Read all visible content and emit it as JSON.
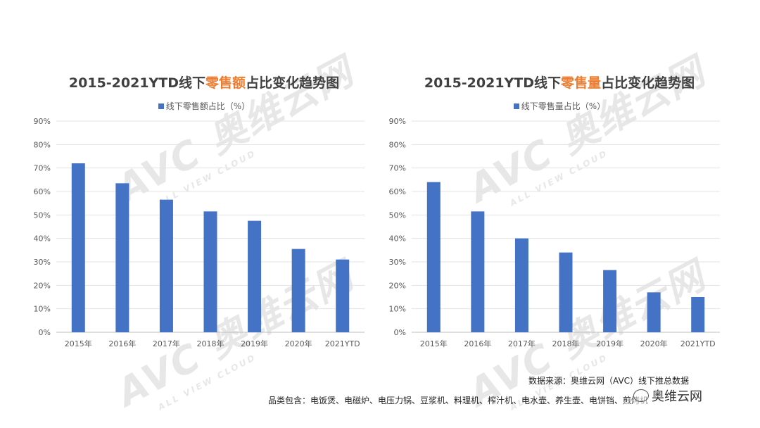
{
  "chart_data": [
    {
      "type": "bar",
      "title_parts": [
        "2015-2021YTD线下",
        "零售额",
        "占比变化趋势图"
      ],
      "legend": "线下零售额占比（%）",
      "categories": [
        "2015年",
        "2016年",
        "2017年",
        "2018年",
        "2019年",
        "2020年",
        "2021YTD"
      ],
      "series": [
        {
          "name": "线下零售额占比（%）",
          "values": [
            72,
            63.5,
            56.5,
            51.5,
            47.5,
            35.5,
            31
          ]
        }
      ],
      "y_ticks": [
        "0%",
        "10%",
        "20%",
        "30%",
        "40%",
        "50%",
        "60%",
        "70%",
        "80%",
        "90%"
      ],
      "ylim": [
        0,
        90
      ],
      "grid": true,
      "bar_color": "#4472C4",
      "highlight_color": "#ED7D31"
    },
    {
      "type": "bar",
      "title_parts": [
        "2015-2021YTD线下",
        "零售量",
        "占比变化趋势图"
      ],
      "legend": "线下零售量占比（%）",
      "categories": [
        "2015年",
        "2016年",
        "2017年",
        "2018年",
        "2019年",
        "2020年",
        "2021YTD"
      ],
      "series": [
        {
          "name": "线下零售量占比（%）",
          "values": [
            64,
            51.5,
            40,
            34,
            26.5,
            17,
            15
          ]
        }
      ],
      "y_ticks": [
        "0%",
        "10%",
        "20%",
        "30%",
        "40%",
        "50%",
        "60%",
        "70%",
        "80%",
        "90%"
      ],
      "ylim": [
        0,
        90
      ],
      "grid": true,
      "bar_color": "#4472C4",
      "highlight_color": "#ED7D31"
    }
  ],
  "footer": {
    "source": "数据来源：奥维云网（AVC）线下推总数据",
    "categories": "品类包含：电饭煲、电磁炉、电压力锅、豆浆机、料理机、榨汁机、电水壶、养生壶、电饼铛、煎烤机"
  },
  "brand": "奥维云网",
  "watermark": {
    "logo": "AVC 奥维云网",
    "tagline": "ALL VIEW CLOUD"
  }
}
